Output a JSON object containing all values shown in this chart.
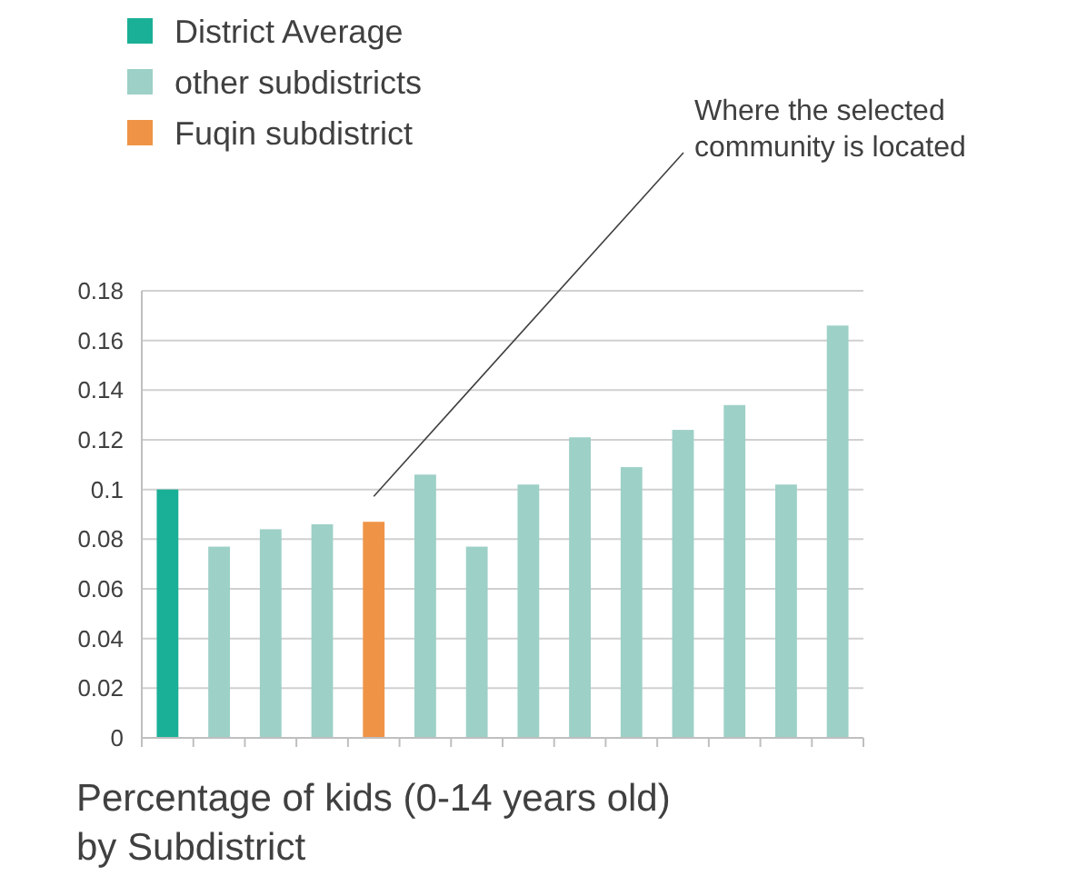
{
  "chart_data": {
    "type": "bar",
    "title": "Percentage of kids (0-14 years old) by Subdistrict",
    "categories": [
      null,
      null,
      null,
      null,
      null,
      null,
      null,
      null,
      null,
      null,
      null,
      null,
      null,
      null
    ],
    "series": [
      {
        "name": "District Average",
        "color": "#1aaf97",
        "values": [
          0.1,
          null,
          null,
          null,
          null,
          null,
          null,
          null,
          null,
          null,
          null,
          null,
          null,
          null
        ]
      },
      {
        "name": "other subdistricts",
        "color": "#9dd0c7",
        "values": [
          null,
          0.077,
          0.084,
          0.086,
          null,
          0.106,
          0.077,
          0.102,
          0.121,
          0.109,
          0.124,
          0.134,
          0.102,
          0.166
        ]
      },
      {
        "name": "Fuqin subdistrict",
        "color": "#ef9446",
        "values": [
          null,
          null,
          null,
          null,
          0.087,
          null,
          null,
          null,
          null,
          null,
          null,
          null,
          null,
          null
        ]
      }
    ],
    "ylim": [
      0,
      0.18
    ],
    "yticks": [
      0,
      0.02,
      0.04,
      0.06,
      0.08,
      0.1,
      0.12,
      0.14,
      0.16,
      0.18
    ],
    "grid": "y",
    "legend": "top left",
    "annotations": [
      "Where the selected community is located"
    ]
  }
}
